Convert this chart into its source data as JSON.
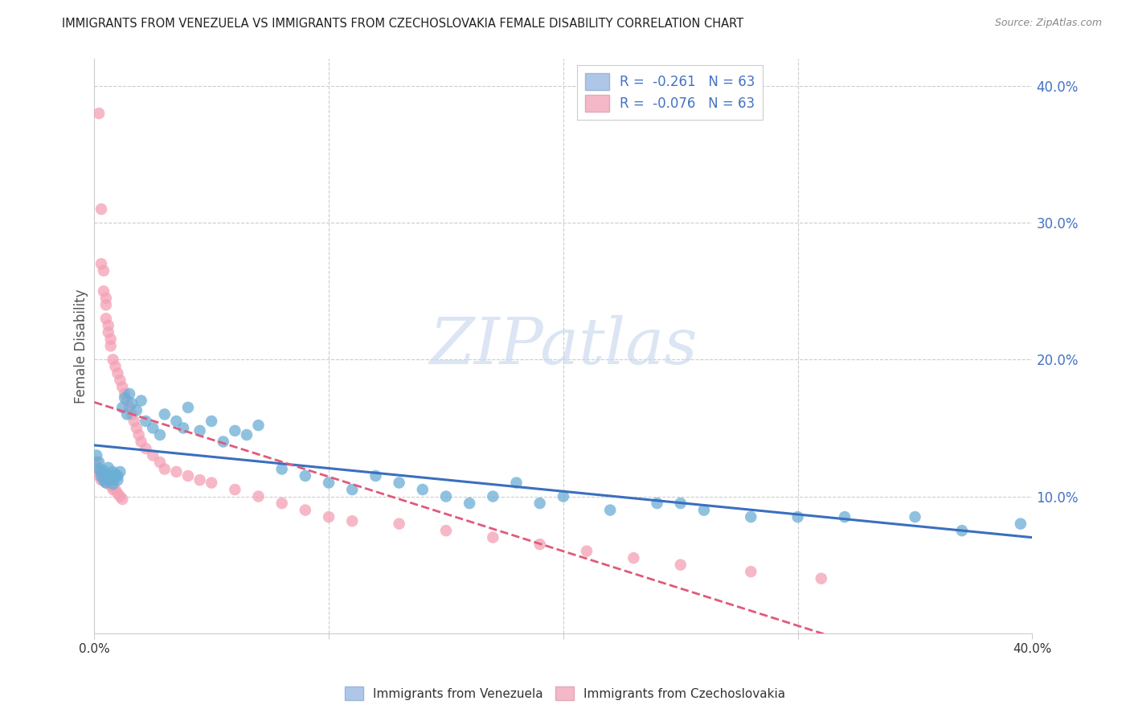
{
  "title": "IMMIGRANTS FROM VENEZUELA VS IMMIGRANTS FROM CZECHOSLOVAKIA FEMALE DISABILITY CORRELATION CHART",
  "source": "Source: ZipAtlas.com",
  "ylabel": "Female Disability",
  "xlim": [
    0.0,
    0.4
  ],
  "ylim": [
    0.0,
    0.42
  ],
  "yticks": [
    0.1,
    0.2,
    0.3,
    0.4
  ],
  "ytick_labels": [
    "10.0%",
    "20.0%",
    "30.0%",
    "40.0%"
  ],
  "legend_entries": [
    {
      "label": "R =  -0.261   N = 63",
      "color": "#aec6e8"
    },
    {
      "label": "R =  -0.076   N = 63",
      "color": "#f4b8c8"
    }
  ],
  "series1_name": "Immigrants from Venezuela",
  "series2_name": "Immigrants from Czechoslovakia",
  "series1_color": "#6baed6",
  "series2_color": "#f4a0b5",
  "series1_line_color": "#3a6fbf",
  "series2_line_color": "#e05a7a",
  "venezuela_x": [
    0.001,
    0.002,
    0.002,
    0.003,
    0.003,
    0.004,
    0.004,
    0.005,
    0.005,
    0.006,
    0.006,
    0.007,
    0.007,
    0.008,
    0.008,
    0.009,
    0.009,
    0.01,
    0.01,
    0.011,
    0.012,
    0.013,
    0.014,
    0.015,
    0.016,
    0.018,
    0.02,
    0.022,
    0.025,
    0.028,
    0.03,
    0.035,
    0.038,
    0.04,
    0.045,
    0.05,
    0.055,
    0.06,
    0.065,
    0.07,
    0.08,
    0.09,
    0.1,
    0.11,
    0.12,
    0.13,
    0.14,
    0.15,
    0.16,
    0.17,
    0.18,
    0.19,
    0.2,
    0.22,
    0.24,
    0.25,
    0.26,
    0.28,
    0.3,
    0.32,
    0.35,
    0.37,
    0.395
  ],
  "venezuela_y": [
    0.13,
    0.125,
    0.12,
    0.115,
    0.118,
    0.112,
    0.119,
    0.11,
    0.116,
    0.113,
    0.121,
    0.115,
    0.112,
    0.118,
    0.109,
    0.114,
    0.116,
    0.112,
    0.115,
    0.118,
    0.165,
    0.172,
    0.16,
    0.175,
    0.168,
    0.163,
    0.17,
    0.155,
    0.15,
    0.145,
    0.16,
    0.155,
    0.15,
    0.165,
    0.148,
    0.155,
    0.14,
    0.148,
    0.145,
    0.152,
    0.12,
    0.115,
    0.11,
    0.105,
    0.115,
    0.11,
    0.105,
    0.1,
    0.095,
    0.1,
    0.11,
    0.095,
    0.1,
    0.09,
    0.095,
    0.095,
    0.09,
    0.085,
    0.085,
    0.085,
    0.085,
    0.075,
    0.08
  ],
  "czechoslovakia_x": [
    0.001,
    0.001,
    0.002,
    0.002,
    0.002,
    0.003,
    0.003,
    0.003,
    0.003,
    0.004,
    0.004,
    0.004,
    0.005,
    0.005,
    0.005,
    0.005,
    0.006,
    0.006,
    0.006,
    0.007,
    0.007,
    0.007,
    0.008,
    0.008,
    0.009,
    0.009,
    0.01,
    0.01,
    0.011,
    0.011,
    0.012,
    0.012,
    0.013,
    0.014,
    0.015,
    0.016,
    0.017,
    0.018,
    0.019,
    0.02,
    0.022,
    0.025,
    0.028,
    0.03,
    0.035,
    0.04,
    0.045,
    0.05,
    0.06,
    0.07,
    0.08,
    0.09,
    0.1,
    0.11,
    0.13,
    0.15,
    0.17,
    0.19,
    0.21,
    0.23,
    0.25,
    0.28,
    0.31
  ],
  "czechoslovakia_y": [
    0.125,
    0.122,
    0.38,
    0.118,
    0.115,
    0.31,
    0.115,
    0.27,
    0.112,
    0.265,
    0.25,
    0.112,
    0.245,
    0.24,
    0.23,
    0.11,
    0.225,
    0.22,
    0.11,
    0.215,
    0.21,
    0.108,
    0.2,
    0.105,
    0.195,
    0.105,
    0.19,
    0.102,
    0.185,
    0.1,
    0.18,
    0.098,
    0.175,
    0.17,
    0.165,
    0.16,
    0.155,
    0.15,
    0.145,
    0.14,
    0.135,
    0.13,
    0.125,
    0.12,
    0.118,
    0.115,
    0.112,
    0.11,
    0.105,
    0.1,
    0.095,
    0.09,
    0.085,
    0.082,
    0.08,
    0.075,
    0.07,
    0.065,
    0.06,
    0.055,
    0.05,
    0.045,
    0.04
  ]
}
